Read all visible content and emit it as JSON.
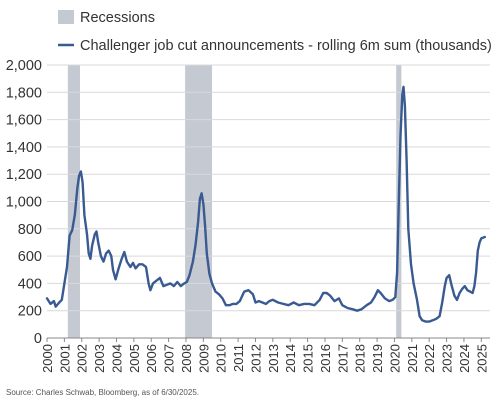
{
  "chart_data": {
    "type": "line",
    "legend": {
      "recession_label": "Recessions",
      "series_label": "Challenger job cut announcements - rolling 6m sum (thousands)",
      "placement": "top"
    },
    "colors": {
      "line": "#3a5a92",
      "recession": "#c5c9d2",
      "grid": "#d9d9d9",
      "axis": "#888888"
    },
    "ylim": [
      0,
      2000
    ],
    "y_ticks": [
      0,
      200,
      400,
      600,
      800,
      1000,
      1200,
      1400,
      1600,
      1800,
      2000
    ],
    "y_tick_labels": [
      "0",
      "200",
      "400",
      "600",
      "800",
      "1,000",
      "1,200",
      "1,400",
      "1,600",
      "1,800",
      "2,000"
    ],
    "xlim": [
      2000,
      2025.5
    ],
    "x_ticks": [
      2000,
      2001,
      2002,
      2003,
      2004,
      2005,
      2006,
      2007,
      2008,
      2009,
      2010,
      2011,
      2012,
      2013,
      2014,
      2015,
      2016,
      2017,
      2018,
      2019,
      2020,
      2021,
      2022,
      2023,
      2024,
      2025
    ],
    "x_tick_labels": [
      "2000",
      "2001",
      "2002",
      "2003",
      "2004",
      "2005",
      "2006",
      "2007",
      "2008",
      "2009",
      "2010",
      "2011",
      "2012",
      "2013",
      "2014",
      "2015",
      "2016",
      "2017",
      "2018",
      "2019",
      "2020",
      "2021",
      "2022",
      "2023",
      "2024",
      "2025"
    ],
    "grid": "horizontal",
    "recessions": [
      [
        2001.2,
        2001.9
      ],
      [
        2007.95,
        2009.5
      ],
      [
        2020.1,
        2020.4
      ]
    ],
    "series": [
      {
        "name": "Challenger job cut announcements - rolling 6m sum (thousands)",
        "points": [
          [
            2000.0,
            290
          ],
          [
            2000.2,
            250
          ],
          [
            2000.4,
            270
          ],
          [
            2000.5,
            230
          ],
          [
            2000.7,
            260
          ],
          [
            2000.85,
            280
          ],
          [
            2001.0,
            400
          ],
          [
            2001.15,
            520
          ],
          [
            2001.3,
            750
          ],
          [
            2001.45,
            790
          ],
          [
            2001.6,
            900
          ],
          [
            2001.75,
            1100
          ],
          [
            2001.85,
            1190
          ],
          [
            2001.95,
            1220
          ],
          [
            2002.05,
            1140
          ],
          [
            2002.15,
            900
          ],
          [
            2002.3,
            760
          ],
          [
            2002.4,
            620
          ],
          [
            2002.5,
            580
          ],
          [
            2002.6,
            680
          ],
          [
            2002.75,
            760
          ],
          [
            2002.85,
            780
          ],
          [
            2002.95,
            700
          ],
          [
            2003.1,
            600
          ],
          [
            2003.25,
            560
          ],
          [
            2003.4,
            620
          ],
          [
            2003.55,
            640
          ],
          [
            2003.7,
            600
          ],
          [
            2003.8,
            500
          ],
          [
            2003.95,
            430
          ],
          [
            2004.1,
            500
          ],
          [
            2004.3,
            580
          ],
          [
            2004.45,
            630
          ],
          [
            2004.6,
            560
          ],
          [
            2004.8,
            520
          ],
          [
            2004.95,
            550
          ],
          [
            2005.1,
            510
          ],
          [
            2005.3,
            540
          ],
          [
            2005.5,
            540
          ],
          [
            2005.7,
            520
          ],
          [
            2005.85,
            400
          ],
          [
            2005.95,
            350
          ],
          [
            2006.1,
            400
          ],
          [
            2006.3,
            420
          ],
          [
            2006.5,
            440
          ],
          [
            2006.7,
            380
          ],
          [
            2006.9,
            390
          ],
          [
            2007.1,
            400
          ],
          [
            2007.3,
            380
          ],
          [
            2007.5,
            410
          ],
          [
            2007.7,
            380
          ],
          [
            2007.9,
            400
          ],
          [
            2008.05,
            410
          ],
          [
            2008.2,
            460
          ],
          [
            2008.4,
            560
          ],
          [
            2008.55,
            680
          ],
          [
            2008.7,
            850
          ],
          [
            2008.8,
            1020
          ],
          [
            2008.9,
            1060
          ],
          [
            2009.0,
            980
          ],
          [
            2009.1,
            820
          ],
          [
            2009.2,
            620
          ],
          [
            2009.35,
            470
          ],
          [
            2009.5,
            400
          ],
          [
            2009.7,
            340
          ],
          [
            2009.9,
            320
          ],
          [
            2010.1,
            290
          ],
          [
            2010.3,
            240
          ],
          [
            2010.5,
            240
          ],
          [
            2010.7,
            250
          ],
          [
            2010.9,
            250
          ],
          [
            2011.1,
            270
          ],
          [
            2011.35,
            340
          ],
          [
            2011.6,
            350
          ],
          [
            2011.85,
            320
          ],
          [
            2012.0,
            260
          ],
          [
            2012.2,
            270
          ],
          [
            2012.4,
            260
          ],
          [
            2012.6,
            250
          ],
          [
            2012.8,
            270
          ],
          [
            2013.0,
            280
          ],
          [
            2013.3,
            260
          ],
          [
            2013.6,
            250
          ],
          [
            2013.9,
            240
          ],
          [
            2014.2,
            260
          ],
          [
            2014.5,
            240
          ],
          [
            2014.8,
            250
          ],
          [
            2015.1,
            250
          ],
          [
            2015.4,
            240
          ],
          [
            2015.7,
            280
          ],
          [
            2015.9,
            330
          ],
          [
            2016.1,
            330
          ],
          [
            2016.3,
            310
          ],
          [
            2016.55,
            270
          ],
          [
            2016.8,
            290
          ],
          [
            2017.0,
            240
          ],
          [
            2017.3,
            220
          ],
          [
            2017.6,
            210
          ],
          [
            2017.85,
            200
          ],
          [
            2018.1,
            210
          ],
          [
            2018.4,
            240
          ],
          [
            2018.65,
            260
          ],
          [
            2018.85,
            300
          ],
          [
            2019.05,
            350
          ],
          [
            2019.2,
            330
          ],
          [
            2019.45,
            290
          ],
          [
            2019.7,
            270
          ],
          [
            2019.9,
            280
          ],
          [
            2020.05,
            300
          ],
          [
            2020.15,
            480
          ],
          [
            2020.25,
            1000
          ],
          [
            2020.35,
            1480
          ],
          [
            2020.45,
            1780
          ],
          [
            2020.52,
            1840
          ],
          [
            2020.6,
            1700
          ],
          [
            2020.7,
            1300
          ],
          [
            2020.8,
            800
          ],
          [
            2020.95,
            540
          ],
          [
            2021.1,
            400
          ],
          [
            2021.3,
            280
          ],
          [
            2021.45,
            160
          ],
          [
            2021.6,
            130
          ],
          [
            2021.8,
            120
          ],
          [
            2022.0,
            120
          ],
          [
            2022.2,
            130
          ],
          [
            2022.4,
            140
          ],
          [
            2022.6,
            160
          ],
          [
            2022.75,
            260
          ],
          [
            2022.9,
            380
          ],
          [
            2023.0,
            440
          ],
          [
            2023.15,
            460
          ],
          [
            2023.3,
            380
          ],
          [
            2023.45,
            310
          ],
          [
            2023.6,
            280
          ],
          [
            2023.75,
            330
          ],
          [
            2023.9,
            360
          ],
          [
            2024.05,
            380
          ],
          [
            2024.2,
            350
          ],
          [
            2024.35,
            340
          ],
          [
            2024.5,
            330
          ],
          [
            2024.6,
            380
          ],
          [
            2024.7,
            480
          ],
          [
            2024.8,
            640
          ],
          [
            2024.9,
            700
          ],
          [
            2025.0,
            730
          ],
          [
            2025.2,
            740
          ]
        ]
      }
    ]
  },
  "footer": {
    "source": "Source: Charles Schwab, Bloomberg, as of 6/30/2025."
  }
}
